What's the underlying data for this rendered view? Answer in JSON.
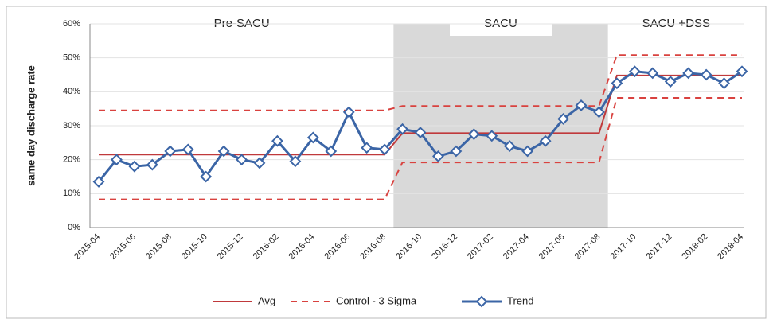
{
  "chart_data": {
    "type": "line",
    "y_label": "same day discharge rate",
    "categories": [
      "2015-04",
      null,
      "2015-06",
      null,
      "2015-08",
      null,
      "2015-10",
      null,
      "2015-12",
      null,
      "2016-02",
      null,
      "2016-04",
      null,
      "2016-06",
      null,
      "2016-08",
      null,
      "2016-10",
      null,
      "2016-12",
      null,
      "2017-02",
      null,
      "2017-04",
      null,
      "2017-06",
      null,
      "2017-08",
      null,
      "2017-10",
      null,
      "2017-12",
      null,
      "2018-02",
      null,
      "2018-04"
    ],
    "phases": [
      {
        "label": "Pre-SACU",
        "points": 17,
        "shaded": false
      },
      {
        "label": "SACU",
        "points": 12,
        "shaded": true
      },
      {
        "label": "SACU +DSS",
        "points": 8,
        "shaded": false
      }
    ],
    "series": [
      {
        "name": "Avg",
        "color": "#c0393b",
        "style": "solid",
        "values": [
          21.5,
          21.5,
          21.5,
          21.5,
          21.5,
          21.5,
          21.5,
          21.5,
          21.5,
          21.5,
          21.5,
          21.5,
          21.5,
          21.5,
          21.5,
          21.5,
          21.5,
          27.8,
          27.8,
          27.8,
          27.8,
          27.8,
          27.8,
          27.8,
          27.8,
          27.8,
          27.8,
          27.8,
          27.8,
          44.8,
          44.8,
          44.8,
          44.8,
          44.8,
          44.8,
          44.8,
          44.8
        ]
      },
      {
        "name": "Control - 3 Sigma",
        "color": "#d9423f",
        "style": "dashed",
        "upper": [
          34.5,
          34.5,
          34.5,
          34.5,
          34.5,
          34.5,
          34.5,
          34.5,
          34.5,
          34.5,
          34.5,
          34.5,
          34.5,
          34.5,
          34.5,
          34.5,
          34.5,
          35.8,
          35.8,
          35.8,
          35.8,
          35.8,
          35.8,
          35.8,
          35.8,
          35.8,
          35.8,
          35.8,
          35.8,
          50.8,
          50.8,
          50.8,
          50.8,
          50.8,
          50.8,
          50.8,
          50.8
        ],
        "lower": [
          8.3,
          8.3,
          8.3,
          8.3,
          8.3,
          8.3,
          8.3,
          8.3,
          8.3,
          8.3,
          8.3,
          8.3,
          8.3,
          8.3,
          8.3,
          8.3,
          8.3,
          19.2,
          19.2,
          19.2,
          19.2,
          19.2,
          19.2,
          19.2,
          19.2,
          19.2,
          19.2,
          19.2,
          19.2,
          38.2,
          38.2,
          38.2,
          38.2,
          38.2,
          38.2,
          38.2,
          38.2
        ]
      },
      {
        "name": "Trend",
        "color": "#3b65a6",
        "style": "markers",
        "values": [
          13.5,
          20,
          18,
          18.5,
          22.5,
          23,
          15,
          22.5,
          20,
          19,
          25.5,
          19.5,
          26.5,
          22.5,
          34,
          23.5,
          23,
          29,
          28,
          21,
          22.5,
          27.5,
          27,
          24,
          22.5,
          25.5,
          32,
          36,
          34,
          42.5,
          46,
          45.5,
          43,
          45.5,
          45,
          42.5,
          46
        ]
      }
    ],
    "ylim": [
      0,
      60
    ],
    "yticks": [
      {
        "value": 0,
        "label": "0%"
      },
      {
        "value": 10,
        "label": "10%"
      },
      {
        "value": 20,
        "label": "20%"
      },
      {
        "value": 30,
        "label": "30%"
      },
      {
        "value": 40,
        "label": "40%"
      },
      {
        "value": 50,
        "label": "50%"
      },
      {
        "value": 60,
        "label": "60%"
      }
    ],
    "grid": true
  }
}
